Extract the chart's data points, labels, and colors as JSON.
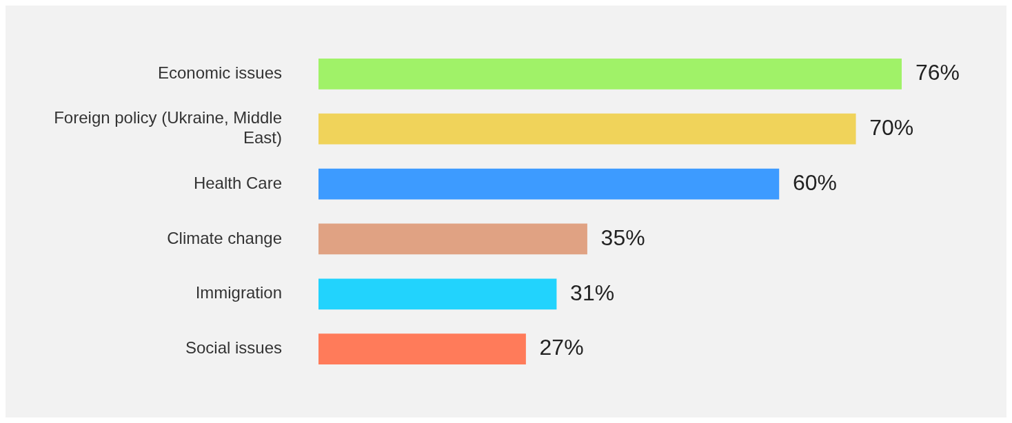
{
  "chart_data": {
    "type": "bar",
    "orientation": "horizontal",
    "categories": [
      "Economic issues",
      "Foreign policy (Ukraine, Middle East)",
      "Health Care",
      "Climate change",
      "Immigration",
      "Social issues"
    ],
    "values": [
      76,
      70,
      60,
      35,
      31,
      27
    ],
    "value_labels": [
      "76%",
      "70%",
      "60%",
      "35%",
      "31%",
      "27%"
    ],
    "colors": [
      "#a0f268",
      "#f0d35a",
      "#3d9bff",
      "#e0a283",
      "#22d3fd",
      "#ff7b5a"
    ],
    "grid": false,
    "legend": false
  }
}
